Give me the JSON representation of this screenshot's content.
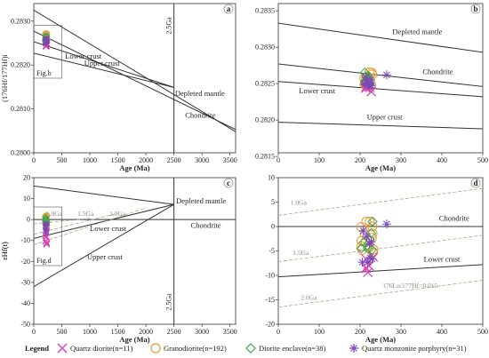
{
  "chart_data": [
    {
      "id": "a",
      "type": "scatter",
      "panel_label": "a",
      "xlabel": "Age (Ma)",
      "ylabel": "(176Hf/177Hf)i",
      "xlim": [
        0,
        3600
      ],
      "ylim": [
        0.28,
        0.2834
      ],
      "xticks": [
        "0",
        "500",
        "1000",
        "1500",
        "2000",
        "2500",
        "3000",
        "3500"
      ],
      "yticks": [
        "0.2800",
        "0.2810",
        "0.2820",
        "0.2830"
      ],
      "lines": [
        {
          "name": "Depleted mantle",
          "x": [
            0,
            3600
          ],
          "y": [
            0.28325,
            0.28048
          ]
        },
        {
          "name": "Chondrite",
          "x": [
            0,
            3600
          ],
          "y": [
            0.28277,
            0.28053
          ]
        },
        {
          "name": "Lower crust",
          "x": [
            0,
            2500
          ],
          "y": [
            0.28253,
            0.28149
          ]
        },
        {
          "name": "Upper crust",
          "x": [
            0,
            2500
          ],
          "y": [
            0.28227,
            0.28149
          ]
        }
      ],
      "vline": {
        "x": 2500,
        "label": "2.5Ga"
      },
      "inset_label": "Fig.b",
      "labels": [
        {
          "text": "Lower crust",
          "x": 560,
          "y": 0.28215
        },
        {
          "text": "Upper crust",
          "x": 900,
          "y": 0.28198
        },
        {
          "text": "Depleted mantle",
          "x": 2520,
          "y": 0.2813
        },
        {
          "text": "Chondrite",
          "x": 2700,
          "y": 0.2808
        }
      ]
    },
    {
      "id": "b",
      "type": "scatter",
      "panel_label": "b",
      "xlabel": "Age (Ma)",
      "ylabel": "",
      "xlim": [
        0,
        500
      ],
      "ylim": [
        0.28155,
        0.2836
      ],
      "xticks": [
        "0",
        "100",
        "200",
        "300",
        "400",
        "500"
      ],
      "yticks": [
        "0.2815",
        "0.2820",
        "0.2825",
        "0.2830",
        "0.2835"
      ],
      "lines": [
        {
          "name": "Depleted mantle",
          "x": [
            0,
            500
          ],
          "y": [
            0.28333,
            0.28293
          ]
        },
        {
          "name": "Chondrite",
          "x": [
            0,
            500
          ],
          "y": [
            0.28277,
            0.28246
          ]
        },
        {
          "name": "Lower crust",
          "x": [
            0,
            500
          ],
          "y": [
            0.28253,
            0.28232
          ]
        },
        {
          "name": "Upper crust",
          "x": [
            0,
            500
          ],
          "y": [
            0.28197,
            0.28188
          ]
        }
      ],
      "labels": [
        {
          "text": "Depleted mantle",
          "x": 340,
          "y": 0.28318
        },
        {
          "text": "Chondrite",
          "x": 390,
          "y": 0.28263
        },
        {
          "text": "Lower crust",
          "x": 95,
          "y": 0.28237
        },
        {
          "text": "Upper crust",
          "x": 260,
          "y": 0.28201
        }
      ]
    },
    {
      "id": "c",
      "type": "scatter",
      "panel_label": "c",
      "xlabel": "Age (Ma)",
      "ylabel": "εHf(t)",
      "xlim": [
        0,
        3600
      ],
      "ylim": [
        -50,
        20
      ],
      "xticks": [
        "0",
        "500",
        "1000",
        "1500",
        "2000",
        "2500",
        "3000",
        "3500"
      ],
      "yticks": [
        "-50",
        "-40",
        "-30",
        "-20",
        "-10",
        "0",
        "10",
        "20"
      ],
      "lines": [
        {
          "name": "Depleted mantle",
          "x": [
            0,
            2500
          ],
          "y": [
            16,
            7.2
          ]
        },
        {
          "name": "Chondrite",
          "x": [
            0,
            3600
          ],
          "y": [
            0,
            0
          ]
        },
        {
          "name": "Lower crust",
          "x": [
            0,
            2500
          ],
          "y": [
            -9,
            7.2
          ]
        },
        {
          "name": "Upper crust",
          "x": [
            0,
            2500
          ],
          "y": [
            -32,
            7.2
          ]
        },
        {
          "name": "1.0Ga",
          "x": [
            0,
            1000
          ],
          "y": [
            -2,
            0.5
          ],
          "style": "dashed"
        },
        {
          "name": "1.5Ga",
          "x": [
            0,
            1500
          ],
          "y": [
            -7,
            3
          ],
          "style": "dashed"
        },
        {
          "name": "2.0Ga",
          "x": [
            0,
            2000
          ],
          "y": [
            -12,
            5.5
          ],
          "style": "dashed"
        }
      ],
      "vline": {
        "x": 2500,
        "label": "2.5Ga"
      },
      "inset_label": "Fig.d",
      "labels": [
        {
          "text": "Depleted mantle",
          "x": 2540,
          "y": 7.8
        },
        {
          "text": "Chondrite",
          "x": 2800,
          "y": -4
        },
        {
          "text": "Lower crust",
          "x": 1000,
          "y": -5.5
        },
        {
          "text": "Upper crust",
          "x": 950,
          "y": -19
        },
        {
          "text": "1.0Ga",
          "x": 220,
          "y": 1.8
        },
        {
          "text": "1.5Ga",
          "x": 780,
          "y": 1.8
        },
        {
          "text": "2.0Ga",
          "x": 1350,
          "y": 1.8
        }
      ]
    },
    {
      "id": "d",
      "type": "scatter",
      "panel_label": "d",
      "xlabel": "Age (Ma)",
      "ylabel": "εHf(t)",
      "xlim": [
        0,
        500
      ],
      "ylim": [
        -20,
        10
      ],
      "xticks": [
        "0",
        "100",
        "200",
        "300",
        "400",
        "500"
      ],
      "yticks": [
        "-20",
        "-15",
        "-10",
        "-5",
        "0",
        "5",
        "10"
      ],
      "lines": [
        {
          "name": "Chondrite",
          "x": [
            0,
            500
          ],
          "y": [
            0,
            0
          ]
        },
        {
          "name": "Lower crust",
          "x": [
            0,
            500
          ],
          "y": [
            -10.3,
            -7.8
          ]
        },
        {
          "name": "1.0Ga",
          "x": [
            0,
            500
          ],
          "y": [
            2.3,
            7.8
          ],
          "style": "dashed"
        },
        {
          "name": "1.5Ga",
          "x": [
            0,
            500
          ],
          "y": [
            -7.2,
            -1.8
          ],
          "style": "dashed"
        },
        {
          "name": "2.0Ga",
          "x": [
            0,
            500
          ],
          "y": [
            -16.5,
            -11
          ],
          "style": "dashed"
        }
      ],
      "labels": [
        {
          "text": "1.0Ga",
          "x": 30,
          "y": 4.5
        },
        {
          "text": "Chondrite",
          "x": 430,
          "y": 1.2
        },
        {
          "text": "1.5Ga",
          "x": 35,
          "y": -5.8
        },
        {
          "text": "Lower crust",
          "x": 400,
          "y": -7.2
        },
        {
          "text": "2.0Ga",
          "x": 55,
          "y": -15
        },
        {
          "text": "176Lu/177Hf=0.015",
          "x": 255,
          "y": -12.5
        }
      ]
    }
  ],
  "legend": {
    "title": "Legend",
    "entries": [
      {
        "label": "Quartz diorite(n=11)",
        "marker": "x",
        "color": "#d63fb0"
      },
      {
        "label": "Granodiorite(n=192)",
        "marker": "circle",
        "color": "#e89a3c"
      },
      {
        "label": "Diorite enclave(n=38)",
        "marker": "diamond",
        "color": "#3aa84a"
      },
      {
        "label": "Quartz monzonite porphyry(n=31)",
        "marker": "star",
        "color": "#7a49b5"
      }
    ]
  },
  "colors": {
    "quartz_diorite": "#d63fb0",
    "granodiorite": "#e89a3c",
    "diorite_enclave": "#3aa84a",
    "qm_porphyry": "#7a49b5",
    "dashed": "#b3a48a"
  }
}
